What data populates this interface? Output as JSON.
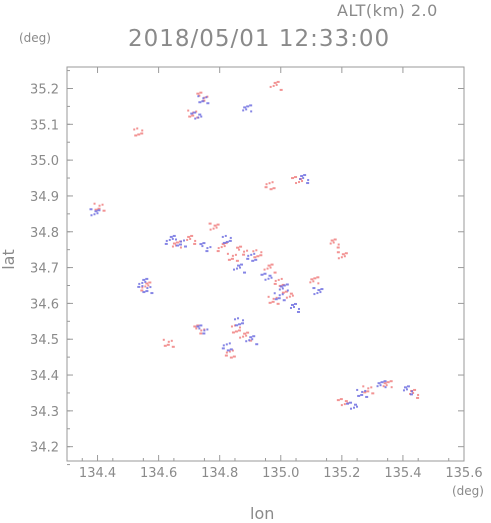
{
  "header": {
    "altitude_label": "ALT(km) 2.0",
    "timestamp": "2018/05/01 12:33:00",
    "y_unit": "(deg)"
  },
  "axes": {
    "xlabel": "lon",
    "ylabel": "lat",
    "x_unit": "(deg)",
    "xlim": [
      134.3,
      135.6
    ],
    "ylim": [
      34.16,
      35.26
    ],
    "x_ticks": [
      "134.4",
      "134.6",
      "134.8",
      "135.0",
      "135.2",
      "135.4",
      "135.6"
    ],
    "y_ticks": [
      "35.2",
      "35.1",
      "35.0",
      "34.9",
      "34.8",
      "34.7",
      "34.6",
      "34.5",
      "34.4",
      "34.3",
      "34.2"
    ]
  },
  "colors": {
    "positive": "#f08080",
    "negative": "#7070e0",
    "axis": "#9a9a9a"
  },
  "chart_data": {
    "type": "scatter",
    "title": "2018/05/01 12:33:00",
    "xlabel": "lon",
    "ylabel": "lat",
    "xlim": [
      134.3,
      135.6
    ],
    "ylim": [
      34.16,
      35.26
    ],
    "grid": false,
    "series": [
      {
        "values": [
          [
            134.71,
            35.13
          ],
          [
            134.74,
            35.18
          ],
          [
            134.53,
            35.08
          ],
          [
            134.98,
            35.21
          ],
          [
            134.96,
            34.93
          ],
          [
            135.05,
            34.95
          ],
          [
            134.4,
            34.87
          ],
          [
            134.66,
            34.77
          ],
          [
            134.7,
            34.78
          ],
          [
            134.78,
            34.82
          ],
          [
            134.8,
            34.76
          ],
          [
            134.84,
            34.73
          ],
          [
            134.87,
            34.75
          ],
          [
            134.92,
            34.74
          ],
          [
            134.96,
            34.7
          ],
          [
            134.99,
            34.66
          ],
          [
            135.02,
            34.63
          ],
          [
            134.97,
            34.61
          ],
          [
            135.11,
            34.67
          ],
          [
            135.17,
            34.77
          ],
          [
            135.2,
            34.74
          ],
          [
            134.55,
            34.65
          ],
          [
            134.63,
            34.49
          ],
          [
            134.73,
            34.53
          ],
          [
            134.85,
            34.53
          ],
          [
            134.88,
            34.51
          ],
          [
            134.83,
            34.46
          ],
          [
            135.2,
            34.33
          ],
          [
            135.28,
            34.36
          ],
          [
            135.35,
            34.38
          ],
          [
            135.43,
            34.35
          ]
        ]
      },
      {
        "values": [
          [
            134.72,
            35.13
          ],
          [
            134.74,
            35.17
          ],
          [
            134.89,
            35.15
          ],
          [
            135.07,
            34.95
          ],
          [
            134.39,
            34.86
          ],
          [
            134.63,
            34.78
          ],
          [
            134.67,
            34.77
          ],
          [
            134.75,
            34.76
          ],
          [
            134.82,
            34.78
          ],
          [
            134.86,
            34.7
          ],
          [
            134.9,
            34.73
          ],
          [
            134.95,
            34.68
          ],
          [
            134.99,
            34.62
          ],
          [
            135.01,
            34.65
          ],
          [
            135.04,
            34.59
          ],
          [
            135.12,
            34.64
          ],
          [
            134.54,
            34.66
          ],
          [
            134.56,
            34.64
          ],
          [
            134.74,
            34.53
          ],
          [
            134.86,
            34.55
          ],
          [
            134.9,
            34.5
          ],
          [
            134.82,
            34.48
          ],
          [
            135.23,
            34.32
          ],
          [
            135.26,
            34.35
          ],
          [
            135.33,
            34.38
          ],
          [
            135.41,
            34.36
          ]
        ]
      }
    ]
  }
}
